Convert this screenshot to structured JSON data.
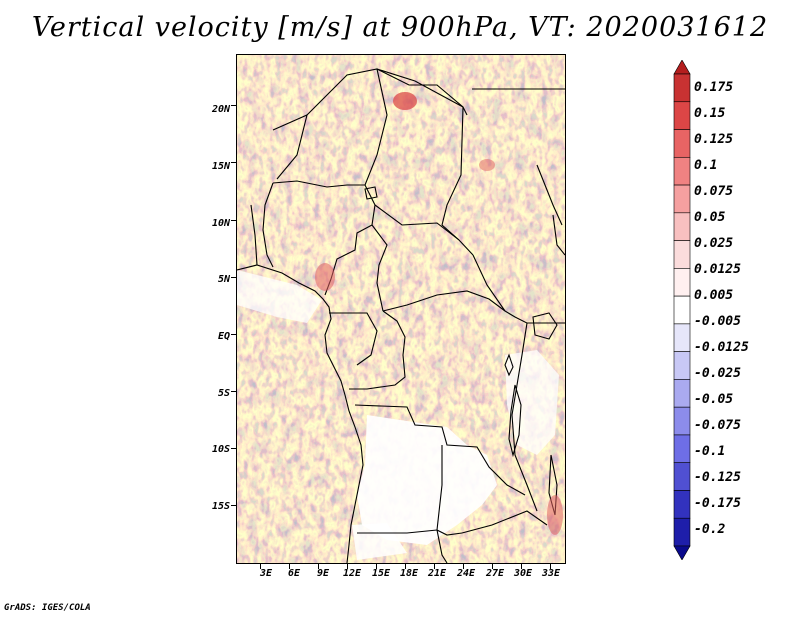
{
  "title": "Vertical velocity [m/s] at 900hPa, VT: 2020031612",
  "credit": "GrADS: IGES/COLA",
  "map": {
    "lat_labels": [
      "20N",
      "15N",
      "10N",
      "5N",
      "EQ",
      "5S",
      "10S",
      "15S"
    ],
    "lat_values": [
      20,
      15,
      10,
      5,
      0,
      -5,
      -10,
      -15
    ],
    "lon_labels": [
      "3E",
      "6E",
      "9E",
      "12E",
      "15E",
      "18E",
      "21E",
      "24E",
      "27E",
      "30E",
      "33E"
    ],
    "lon_values": [
      3,
      6,
      9,
      12,
      15,
      18,
      21,
      24,
      27,
      30,
      33
    ],
    "lon_range": [
      0.5,
      34.5
    ],
    "lat_range": [
      -20,
      24.5
    ]
  },
  "colorbar": {
    "labels": [
      "0.175",
      "0.15",
      "0.125",
      "0.1",
      "0.075",
      "0.05",
      "0.025",
      "0.0125",
      "0.005",
      "-0.005",
      "-0.0125",
      "-0.025",
      "-0.05",
      "-0.075",
      "-0.1",
      "-0.125",
      "-0.175",
      "-0.2"
    ],
    "colors": [
      "#b41e1e",
      "#c83232",
      "#dc4646",
      "#e86464",
      "#f08282",
      "#f5a0a0",
      "#f8c0c0",
      "#fbdcdc",
      "#fff0f0",
      "#ffffff",
      "#e6e6fa",
      "#c8c8f5",
      "#aaaaf0",
      "#8c8ceb",
      "#6e6ee6",
      "#5050d2",
      "#3232be",
      "#1e1eaa",
      "#0a0a8c"
    ]
  }
}
